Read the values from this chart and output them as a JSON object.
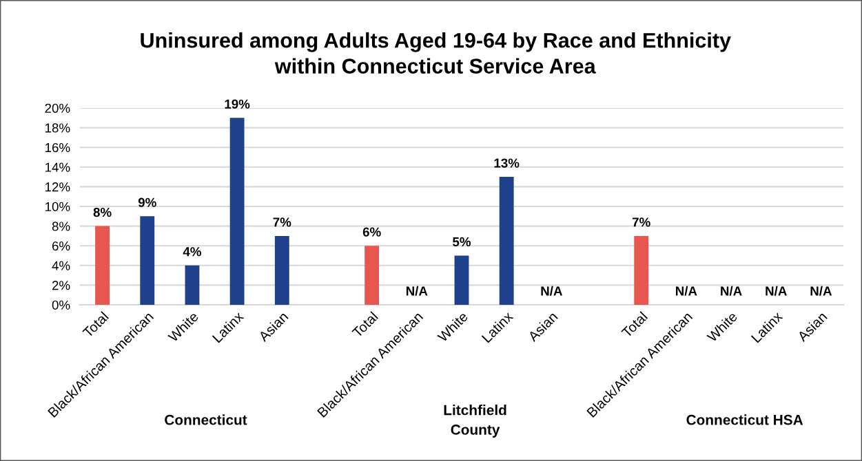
{
  "chart_data": {
    "type": "bar",
    "title": "Uninsured among Adults Aged 19-64 by Race and Ethnicity\nwithin Connecticut Service Area",
    "categories": [
      "Total",
      "Black/African American",
      "White",
      "Latinx",
      "Asian",
      null,
      "Total",
      "Black/African American",
      "White",
      "Latinx",
      "Asian",
      null,
      "Total",
      "Black/African American",
      "White",
      "Latinx",
      "Asian"
    ],
    "values": [
      8,
      9,
      4,
      19,
      7,
      null,
      6,
      null,
      5,
      13,
      null,
      null,
      7,
      null,
      null,
      null,
      null
    ],
    "colors": [
      "#e85650",
      "#1f418b",
      "#1f418b",
      "#1f418b",
      "#1f418b",
      "#1f418b",
      "#e85650",
      "#1f418b",
      "#1f418b",
      "#1f418b",
      "#1f418b",
      "#1f418b",
      "#e85650",
      "#1f418b",
      "#1f418b",
      "#1f418b",
      "#1f418b"
    ],
    "value_labels": [
      "8%",
      "9%",
      "4%",
      "19%",
      "7%",
      null,
      "6%",
      "N/A",
      "5%",
      "13%",
      "N/A",
      null,
      "7%",
      "N/A",
      "N/A",
      "N/A",
      "N/A"
    ],
    "ylim": [
      0,
      20
    ],
    "yticks": [
      {
        "value": 0,
        "label": "0%"
      },
      {
        "value": 2,
        "label": "2%"
      },
      {
        "value": 4,
        "label": "4%"
      },
      {
        "value": 6,
        "label": "6%"
      },
      {
        "value": 8,
        "label": "8%"
      },
      {
        "value": 10,
        "label": "10%"
      },
      {
        "value": 12,
        "label": "12%"
      },
      {
        "value": 14,
        "label": "14%"
      },
      {
        "value": 16,
        "label": "16%"
      },
      {
        "value": 18,
        "label": "18%"
      },
      {
        "value": 20,
        "label": "20%"
      }
    ],
    "grid": "y",
    "annotations": [
      "Connecticut",
      "Litchfield\nCounty",
      "Connecticut HSA"
    ]
  }
}
